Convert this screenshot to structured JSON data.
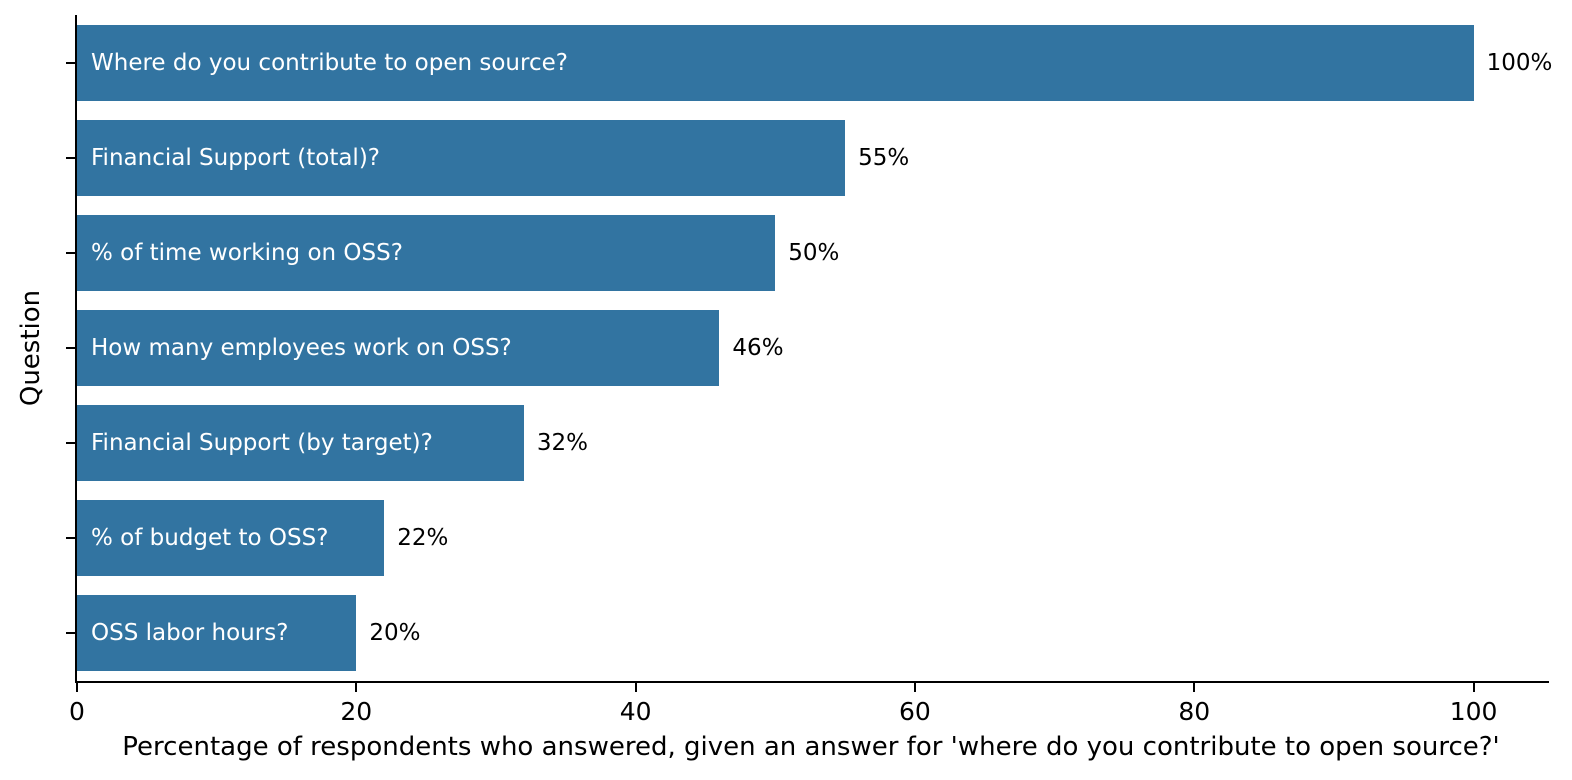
{
  "chart_data": {
    "type": "bar",
    "orientation": "horizontal",
    "title": "",
    "xlabel": "Percentage of respondents who answered, given an answer for 'where do you contribute to open source?'",
    "ylabel": "Question",
    "categories": [
      "Where do you contribute to open source?",
      "Financial Support (total)?",
      "% of time working on OSS?",
      "How many employees work on OSS?",
      "Financial Support (by target)?",
      "% of budget to OSS?",
      "OSS labor hours?"
    ],
    "values": [
      100,
      55,
      50,
      46,
      32,
      22,
      20
    ],
    "value_labels": [
      "100%",
      "55%",
      "50%",
      "46%",
      "32%",
      "22%",
      "20%"
    ],
    "xticks": [
      0,
      20,
      40,
      60,
      80,
      100
    ],
    "xlim": [
      0,
      105.4
    ],
    "grid": false,
    "legend": null,
    "bar_color": "#3274a1",
    "bar_label_color": "#ffffff",
    "value_label_color": "#000000",
    "axis_color": "#000000"
  }
}
